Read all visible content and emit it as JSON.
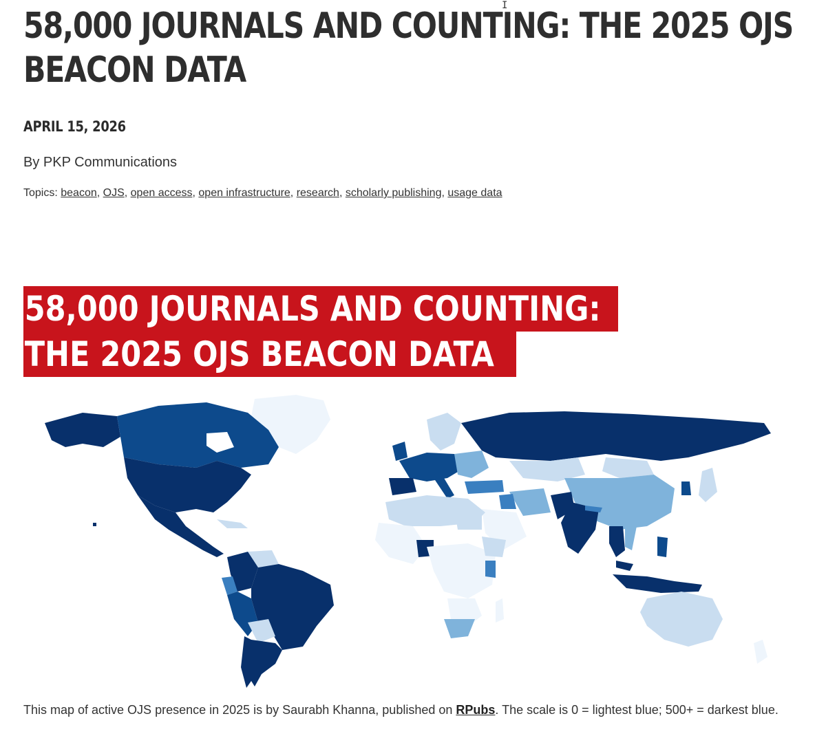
{
  "title_lines": [
    "58,000 JOURNALS AND COUNTING: THE 2025 OJS",
    "BEACON DATA"
  ],
  "date": "APRIL 15, 2026",
  "author": "By PKP Communications",
  "topics_label": "Topics:",
  "topics": [
    "beacon",
    "OJS",
    "open access",
    "open infrastructure",
    "research",
    "scholarly publishing",
    "usage data"
  ],
  "banner_lines": [
    "58,000 JOURNALS AND COUNTING:",
    "THE 2025 OJS BEACON DATA"
  ],
  "caption": {
    "before": "This map of active OJS presence in 2025 is by Saurabh Khanna, published on ",
    "link": "RPubs",
    "after": ". The scale is 0 = lightest blue; 500+ = darkest blue."
  },
  "map_colors": {
    "level_0": "#eef5fc",
    "level_1": "#c9ddf0",
    "level_2": "#7fb3db",
    "level_3": "#3a7fc0",
    "level_4": "#0d4a8c",
    "level_5": "#08306b"
  }
}
